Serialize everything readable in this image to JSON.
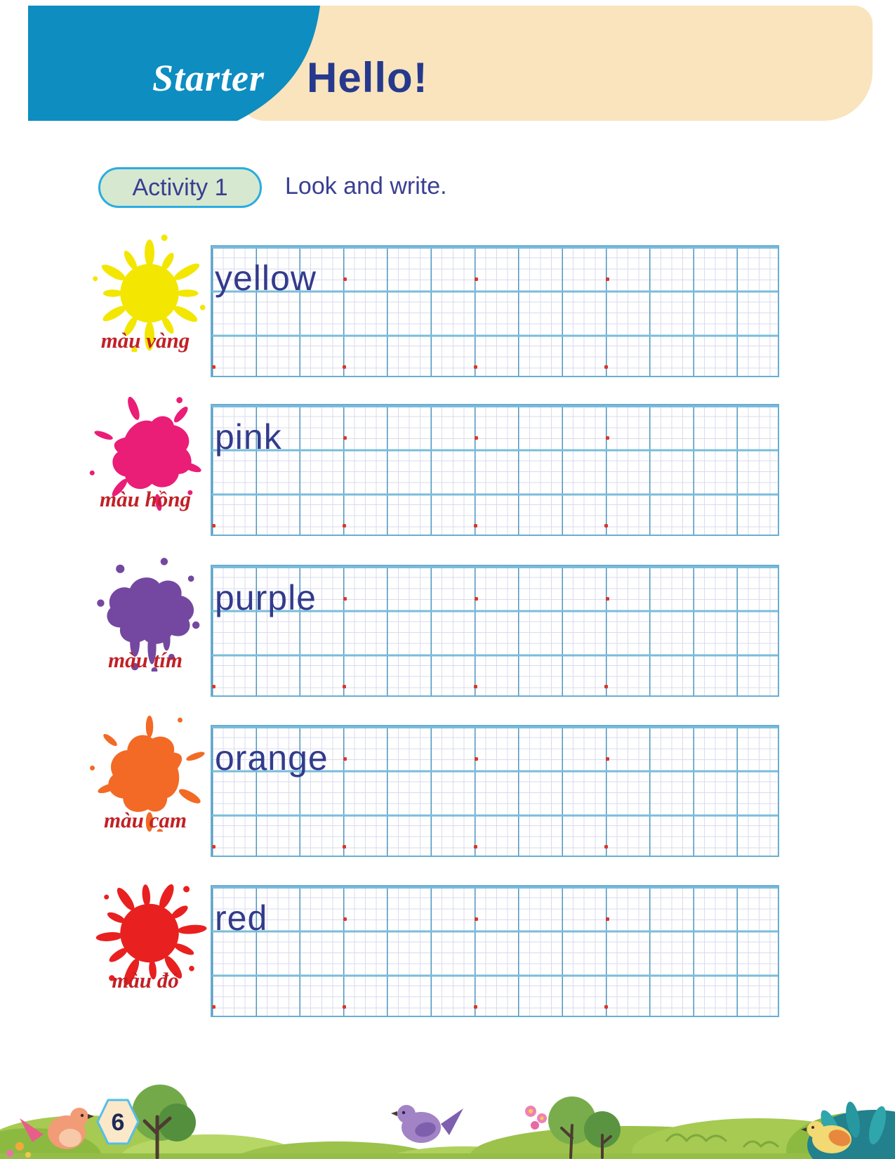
{
  "header": {
    "unit_label": "Starter",
    "title": "Hello!",
    "banner_color": "#0E8DC1",
    "panel_color": "#F9E4BE",
    "title_color": "#26398D"
  },
  "activity": {
    "badge_label": "Activity 1",
    "instruction": "Look and write.",
    "badge_fill": "#D6E8CF",
    "badge_border": "#2BACE2",
    "text_color": "#3A3E92"
  },
  "rows": [
    {
      "word": "yellow",
      "label": "màu vàng",
      "color": "#F3E600"
    },
    {
      "word": "pink",
      "label": "màu hồng",
      "color": "#EA1D77"
    },
    {
      "word": "purple",
      "label": "màu tím",
      "color": "#7448A0"
    },
    {
      "word": "orange",
      "label": "màu cam",
      "color": "#F26A25"
    },
    {
      "word": "red",
      "label": "màu đỏ",
      "color": "#E8201F"
    }
  ],
  "grid_style": {
    "fine_line_color": "#DADBEC",
    "major_vertical_color": "#4D95C0",
    "major_horizontal_color": "#7ABCDB",
    "start_dot_color": "#D8372B",
    "word_color": "#333B8C",
    "label_color": "#C22026"
  },
  "page_number": "6"
}
